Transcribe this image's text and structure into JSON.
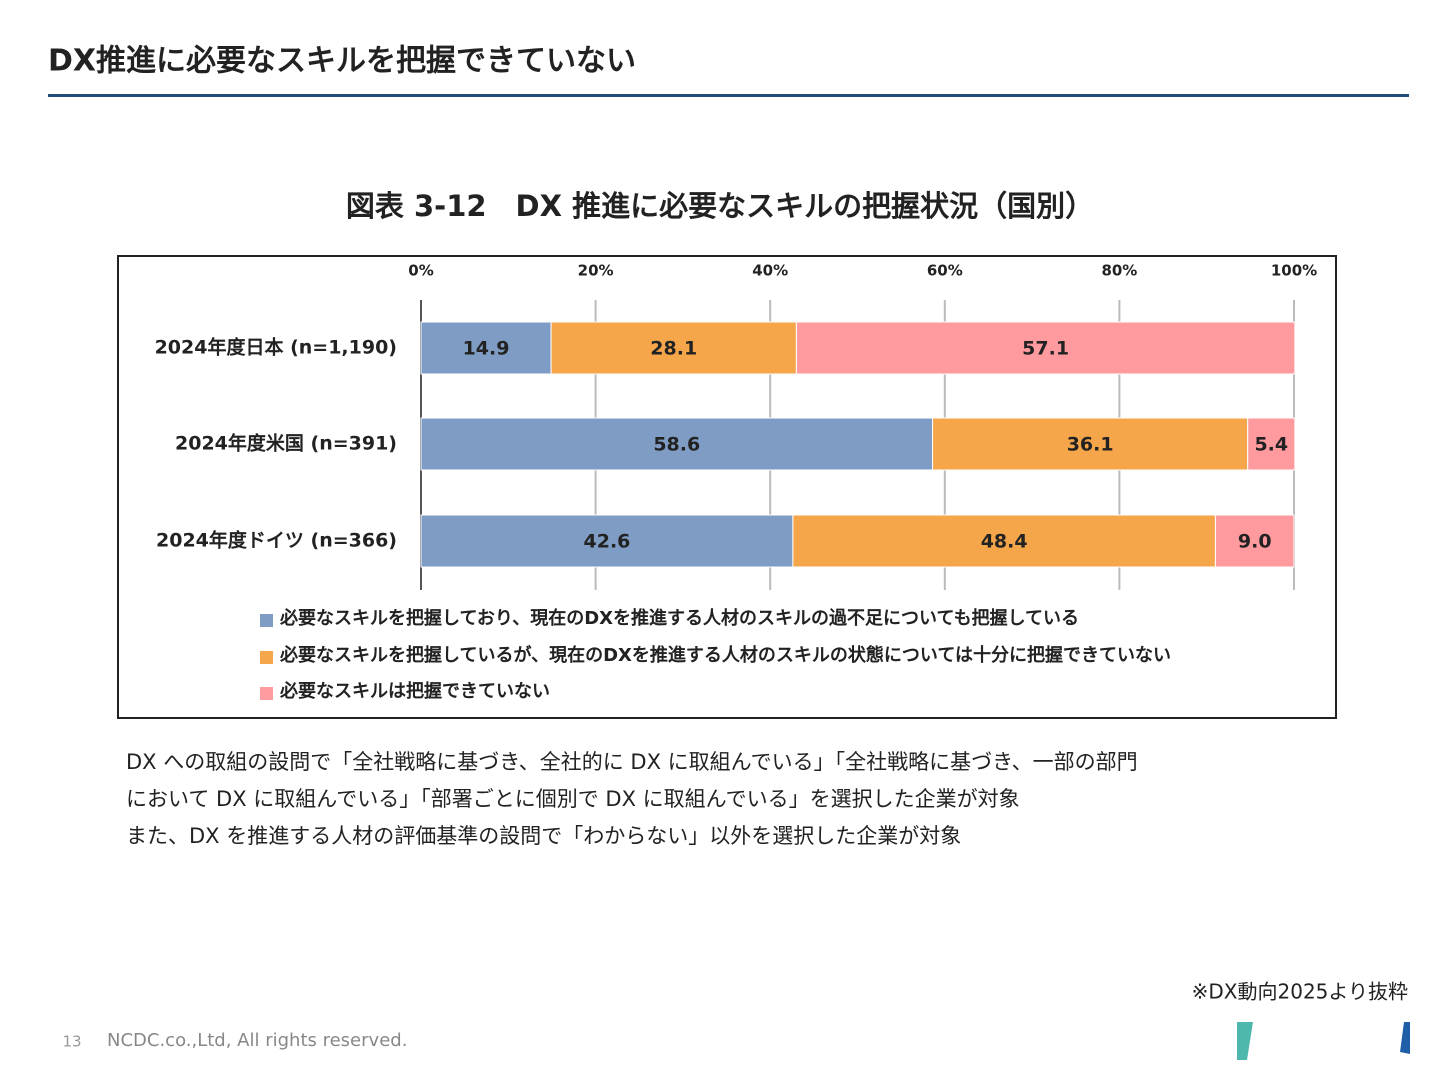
{
  "slide": {
    "title": "DX推進に必要なスキルを把握できていない",
    "notes": [
      "DX への取組の設問で「全社戦略に基づき、全社的に DX に取組んでいる」「全社戦略に基づき、一部の部門",
      "において DX に取組んでいる」「部署ごとに個別で DX に取組んでいる」を選択した企業が対象",
      "また、DX を推進する人材の評価基準の設問で「わからない」以外を選択した企業が対象"
    ],
    "source": "※DX動向2025より抜粋",
    "page_number": 13,
    "copyright": "NCDC.co.,Ltd, All rights reserved."
  },
  "chart_data": {
    "type": "stacked-bar-horizontal",
    "title": "図表 3-12　DX 推進に必要なスキルの把握状況（国別）",
    "categories": [
      "2024年度日本 (n=1,190)",
      "2024年度米国 (n=391)",
      "2024年度ドイツ (n=366)"
    ],
    "series": [
      {
        "name": "必要なスキルを把握しており、現在のDXを推進する人材のスキルの過不足についても把握している",
        "color": "#7f9dc4",
        "values": [
          14.9,
          58.6,
          42.6
        ]
      },
      {
        "name": "必要なスキルを把握しているが、現在のDXを推進する人材のスキルの状態については十分に把握できていない",
        "color": "#f5a54a",
        "values": [
          28.1,
          36.1,
          48.4
        ]
      },
      {
        "name": "必要なスキルは把握できていない",
        "color": "#ff9a9e",
        "values": [
          57.1,
          5.4,
          9.0
        ],
        "value_labels": [
          "57.1",
          "5.4",
          "9.0"
        ]
      }
    ],
    "xlim": [
      0,
      100
    ],
    "xticks": [
      {
        "value": 0,
        "label": "0%"
      },
      {
        "value": 20,
        "label": "20%"
      },
      {
        "value": 40,
        "label": "40%"
      },
      {
        "value": 60,
        "label": "60%"
      },
      {
        "value": 80,
        "label": "80%"
      },
      {
        "value": 100,
        "label": "100%"
      }
    ],
    "grid": true
  }
}
